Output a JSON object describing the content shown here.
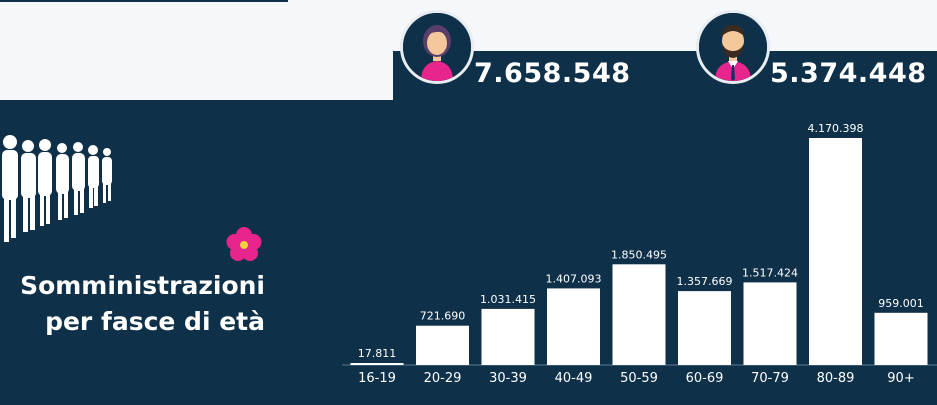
{
  "header": {
    "female_total": "7.658.548",
    "male_total": "5.374.448",
    "female_icon": "woman-avatar-icon",
    "male_icon": "man-avatar-icon"
  },
  "title": {
    "line1": "Somministrazioni",
    "line2": "per fasce di età"
  },
  "icons": {
    "crowd": "crowd-of-people-icon",
    "flower": "pink-primula-flower-icon"
  },
  "colors": {
    "background_navy": "#0e3049",
    "bar": "#ffffff",
    "female_accent": "#e8258c",
    "flower": "#e8258c"
  },
  "chart_data": {
    "type": "bar",
    "categories": [
      "16-19",
      "20-29",
      "30-39",
      "40-49",
      "50-59",
      "60-69",
      "70-79",
      "80-89",
      "90+"
    ],
    "values": [
      17811,
      721690,
      1031415,
      1407093,
      1850495,
      1357669,
      1517424,
      4170398,
      959001
    ],
    "value_labels": [
      "17.811",
      "721.690",
      "1.031.415",
      "1.407.093",
      "1.850.495",
      "1.357.669",
      "1.517.424",
      "4.170.398",
      "959.001"
    ],
    "title": "Somministrazioni per fasce di età",
    "xlabel": "",
    "ylabel": "",
    "ylim": [
      0,
      4170398
    ],
    "grid": false,
    "legend": "none"
  }
}
